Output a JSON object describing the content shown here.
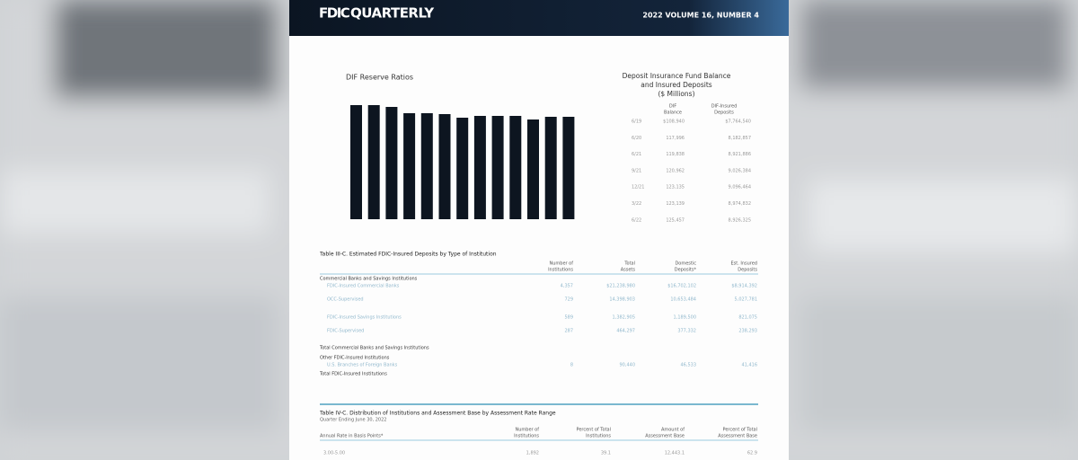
{
  "header": {
    "brand": "FDIC",
    "title": "QUARTERLY",
    "issue": "2022  VOLUME 16,  NUMBER 4"
  },
  "reserve_chart": {
    "title": "DIF Reserve Ratios",
    "values": [
      1.27,
      1.27,
      1.25,
      1.18,
      1.18,
      1.17,
      1.13,
      1.15,
      1.15,
      1.15,
      1.11,
      1.14,
      1.14
    ],
    "color": "#0d1520"
  },
  "fund_table": {
    "title": [
      "Deposit Insurance Fund Balance",
      "and Insured Deposits",
      "($ Millions)"
    ],
    "columns": [
      [
        "DIF",
        "Balance"
      ],
      [
        "DIF-Insured",
        "Deposits"
      ]
    ],
    "rows": [
      [
        "6/19",
        "$108,940",
        "$7,764,540"
      ],
      [
        "6/20",
        "117,996",
        "8,182,857"
      ],
      [
        "6/21",
        "119,838",
        "8,921,886"
      ],
      [
        "9/21",
        "120,962",
        "9,026,384"
      ],
      [
        "12/21",
        "123,135",
        "9,096,464"
      ],
      [
        "3/22",
        "123,139",
        "8,974,832"
      ],
      [
        "6/22",
        "125,457",
        "8,926,325"
      ]
    ]
  },
  "table_3c": {
    "title": "Table III-C.  Estimated FDIC-Insured Deposits by Type of Institution",
    "columns": [
      [
        "Number of",
        "Institutions"
      ],
      [
        "Total",
        "Assets"
      ],
      [
        "Domestic",
        "Deposits*"
      ],
      [
        "Est. Insured",
        "Deposits"
      ]
    ],
    "rows": [
      [
        "Commercial Banks and Savings Institutions",
        "",
        "",
        "",
        ""
      ],
      [
        "FDIC-Insured Commercial Banks",
        "4,357",
        "$21,238,980",
        "$16,702,102",
        "$8,914,392"
      ],
      [
        "OCC-Supervised",
        "729",
        "14,398,903",
        "10,653,484",
        "5,027,781"
      ],
      [
        "FDIC-Insured Savings Institutions",
        "589",
        "1,382,905",
        "1,189,500",
        "821,075"
      ],
      [
        "FDIC-Supervised",
        "287",
        "464,297",
        "377,332",
        "238,293"
      ],
      [
        "Total Commercial Banks and Savings Institutions",
        "",
        "",
        "",
        ""
      ],
      [
        "Other FDIC-Insured Institutions",
        "",
        "",
        "",
        ""
      ],
      [
        "U.S. Branches of Foreign Banks",
        "8",
        "90,440",
        "46,533",
        "41,416"
      ],
      [
        "Total FDIC-Insured Institutions",
        "",
        "",
        "",
        ""
      ]
    ]
  },
  "table_4c": {
    "title": "Table IV-C.  Distribution of Institutions and Assessment Base by Assessment Rate Range",
    "subtitle": "Quarter Ending June 30, 2022",
    "columns": [
      [
        "",
        "Annual Rate in Basis Points*"
      ],
      [
        "Number of",
        "Institutions"
      ],
      [
        "Percent of Total",
        "Institutions"
      ],
      [
        "Amount of",
        "Assessment Base"
      ],
      [
        "Percent of Total",
        "Assessment Base"
      ]
    ],
    "rows": [
      [
        "3.00-5.00",
        "1,892",
        "39.1",
        "12,443.1",
        "62.9"
      ]
    ]
  }
}
